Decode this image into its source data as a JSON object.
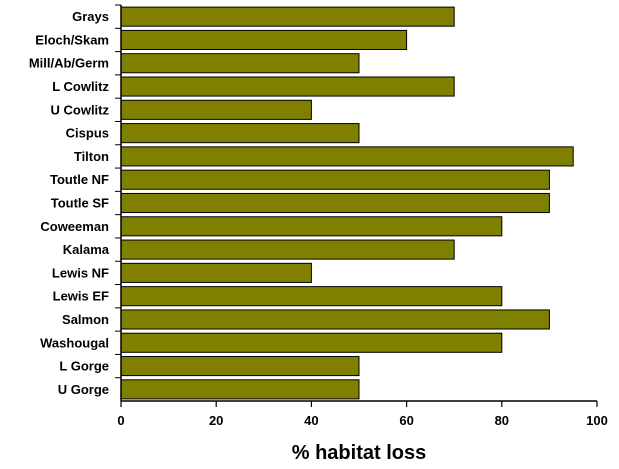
{
  "chart_data": {
    "type": "bar",
    "orientation": "horizontal",
    "categories": [
      "Grays",
      "Eloch/Skam",
      "Mill/Ab/Germ",
      "L Cowlitz",
      "U Cowlitz",
      "Cispus",
      "Tilton",
      "Toutle NF",
      "Toutle SF",
      "Coweeman",
      "Kalama",
      "Lewis NF",
      "Lewis EF",
      "Salmon",
      "Washougal",
      "L Gorge",
      "U Gorge"
    ],
    "values": [
      70,
      60,
      50,
      70,
      40,
      50,
      95,
      90,
      90,
      80,
      70,
      40,
      80,
      90,
      80,
      50,
      50
    ],
    "xlabel": "% habitat loss",
    "xlim": [
      0,
      100
    ],
    "xticks": [
      "0",
      "20",
      "40",
      "60",
      "80",
      "100"
    ],
    "grid": false,
    "bar_color": "#808000",
    "bar_edge_color": "#000000"
  }
}
